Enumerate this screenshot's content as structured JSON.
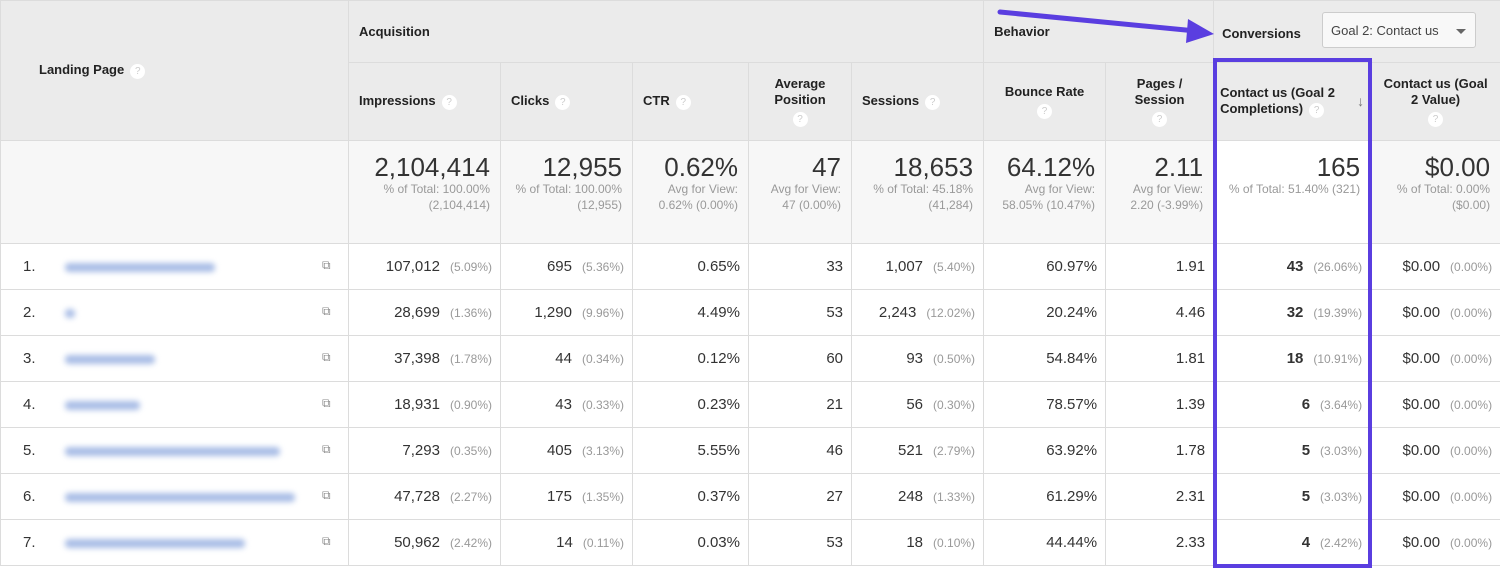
{
  "header": {
    "landing_page": "Landing Page",
    "groups": {
      "acquisition": "Acquisition",
      "behavior": "Behavior",
      "conversions": "Conversions"
    },
    "goal_select": "Goal 2: Contact us",
    "columns": [
      "Impressions",
      "Clicks",
      "CTR",
      "Average Position",
      "Sessions",
      "Bounce Rate",
      "Pages / Session",
      "Contact us (Goal 2 Completions)",
      "Contact us (Goal 2 Value)"
    ],
    "help": "?"
  },
  "totals": [
    {
      "value": "2,104,414",
      "sub": "% of Total: 100.00% (2,104,414)"
    },
    {
      "value": "12,955",
      "sub": "% of Total: 100.00% (12,955)"
    },
    {
      "value": "0.62%",
      "sub": "Avg for View: 0.62% (0.00%)"
    },
    {
      "value": "47",
      "sub": "Avg for View: 47 (0.00%)"
    },
    {
      "value": "18,653",
      "sub": "% of Total: 45.18% (41,284)"
    },
    {
      "value": "64.12%",
      "sub": "Avg for View: 58.05% (10.47%)"
    },
    {
      "value": "2.11",
      "sub": "Avg for View: 2.20 (-3.99%)"
    },
    {
      "value": "165",
      "sub": "% of Total: 51.40% (321)"
    },
    {
      "value": "$0.00",
      "sub": "% of Total: 0.00% ($0.00)"
    }
  ],
  "rows": [
    {
      "n": "1.",
      "imp": "107,012",
      "imp_p": "(5.09%)",
      "clk": "695",
      "clk_p": "(5.36%)",
      "ctr": "0.65%",
      "pos": "33",
      "ses": "1,007",
      "ses_p": "(5.40%)",
      "br": "60.97%",
      "pps": "1.91",
      "gc": "43",
      "gc_p": "(26.06%)",
      "gv": "$0.00",
      "gv_p": "(0.00%)"
    },
    {
      "n": "2.",
      "imp": "28,699",
      "imp_p": "(1.36%)",
      "clk": "1,290",
      "clk_p": "(9.96%)",
      "ctr": "4.49%",
      "pos": "53",
      "ses": "2,243",
      "ses_p": "(12.02%)",
      "br": "20.24%",
      "pps": "4.46",
      "gc": "32",
      "gc_p": "(19.39%)",
      "gv": "$0.00",
      "gv_p": "(0.00%)"
    },
    {
      "n": "3.",
      "imp": "37,398",
      "imp_p": "(1.78%)",
      "clk": "44",
      "clk_p": "(0.34%)",
      "ctr": "0.12%",
      "pos": "60",
      "ses": "93",
      "ses_p": "(0.50%)",
      "br": "54.84%",
      "pps": "1.81",
      "gc": "18",
      "gc_p": "(10.91%)",
      "gv": "$0.00",
      "gv_p": "(0.00%)"
    },
    {
      "n": "4.",
      "imp": "18,931",
      "imp_p": "(0.90%)",
      "clk": "43",
      "clk_p": "(0.33%)",
      "ctr": "0.23%",
      "pos": "21",
      "ses": "56",
      "ses_p": "(0.30%)",
      "br": "78.57%",
      "pps": "1.39",
      "gc": "6",
      "gc_p": "(3.64%)",
      "gv": "$0.00",
      "gv_p": "(0.00%)"
    },
    {
      "n": "5.",
      "imp": "7,293",
      "imp_p": "(0.35%)",
      "clk": "405",
      "clk_p": "(3.13%)",
      "ctr": "5.55%",
      "pos": "46",
      "ses": "521",
      "ses_p": "(2.79%)",
      "br": "63.92%",
      "pps": "1.78",
      "gc": "5",
      "gc_p": "(3.03%)",
      "gv": "$0.00",
      "gv_p": "(0.00%)"
    },
    {
      "n": "6.",
      "imp": "47,728",
      "imp_p": "(2.27%)",
      "clk": "175",
      "clk_p": "(1.35%)",
      "ctr": "0.37%",
      "pos": "27",
      "ses": "248",
      "ses_p": "(1.33%)",
      "br": "61.29%",
      "pps": "2.31",
      "gc": "5",
      "gc_p": "(3.03%)",
      "gv": "$0.00",
      "gv_p": "(0.00%)"
    },
    {
      "n": "7.",
      "imp": "50,962",
      "imp_p": "(2.42%)",
      "clk": "14",
      "clk_p": "(0.11%)",
      "ctr": "0.03%",
      "pos": "53",
      "ses": "18",
      "ses_p": "(0.10%)",
      "br": "44.44%",
      "pps": "2.33",
      "gc": "4",
      "gc_p": "(2.42%)",
      "gv": "$0.00",
      "gv_p": "(0.00%)"
    }
  ],
  "colors": {
    "annotation": "#5a3ee0",
    "header_bg": "#ebebeb"
  },
  "icons": {
    "help": "question-circle-icon",
    "external": "open-link-icon",
    "sort": "arrow-down-icon",
    "dropdown": "caret-down-icon"
  }
}
